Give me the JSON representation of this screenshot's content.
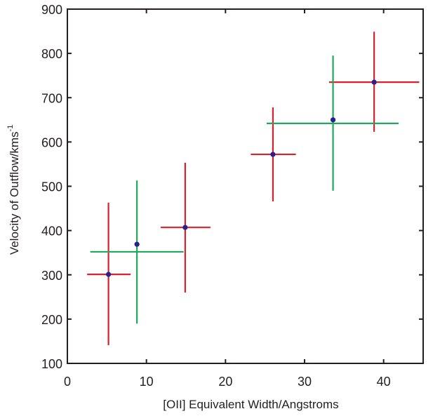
{
  "chart_data": {
    "type": "scatter",
    "title": "",
    "xlabel": "[OII] Equivalent Width/Angstroms",
    "ylabel_main": "Velocity of Outflow/kms",
    "ylabel_superscript": "-1",
    "xlim": [
      0,
      45
    ],
    "ylim": [
      100,
      900
    ],
    "xticks": [
      0,
      10,
      20,
      30,
      40
    ],
    "yticks": [
      100,
      200,
      300,
      400,
      500,
      600,
      700,
      800,
      900
    ],
    "xtick_labels": [
      "0",
      "10",
      "20",
      "30",
      "40"
    ],
    "ytick_labels": [
      "100",
      "200",
      "300",
      "400",
      "500",
      "600",
      "700",
      "800",
      "900"
    ],
    "grid": false,
    "legend": null,
    "colors": {
      "red": "#d7212b",
      "green": "#20a85c",
      "point": "#2b1f8f",
      "axis": "#231f20"
    },
    "series": [
      {
        "name": "red-errorbars",
        "color_key": "red",
        "points": [
          {
            "x": 5.2,
            "y": 301,
            "xerr_low": 2.5,
            "xerr_high": 8.0,
            "yerr_low": 141,
            "yerr_high": 463,
            "hline_y": 301
          },
          {
            "x": 14.9,
            "y": 407,
            "xerr_low": 11.8,
            "xerr_high": 18.1,
            "yerr_low": 260,
            "yerr_high": 553,
            "hline_y": 407
          },
          {
            "x": 26.0,
            "y": 572,
            "xerr_low": 23.2,
            "xerr_high": 28.9,
            "yerr_low": 466,
            "yerr_high": 678,
            "hline_y": 572
          },
          {
            "x": 38.8,
            "y": 735,
            "xerr_low": 33.1,
            "xerr_high": 44.5,
            "yerr_low": 623,
            "yerr_high": 849,
            "hline_y": 735
          }
        ]
      },
      {
        "name": "green-errorbars",
        "color_key": "green",
        "points": [
          {
            "x": 8.8,
            "y": 369,
            "xerr_low": 2.9,
            "xerr_high": 14.7,
            "yerr_low": 190,
            "yerr_high": 513,
            "hline_y": 352
          },
          {
            "x": 33.6,
            "y": 650,
            "xerr_low": 25.2,
            "xerr_high": 41.9,
            "yerr_low": 490,
            "yerr_high": 795,
            "hline_y": 642
          }
        ]
      }
    ]
  }
}
